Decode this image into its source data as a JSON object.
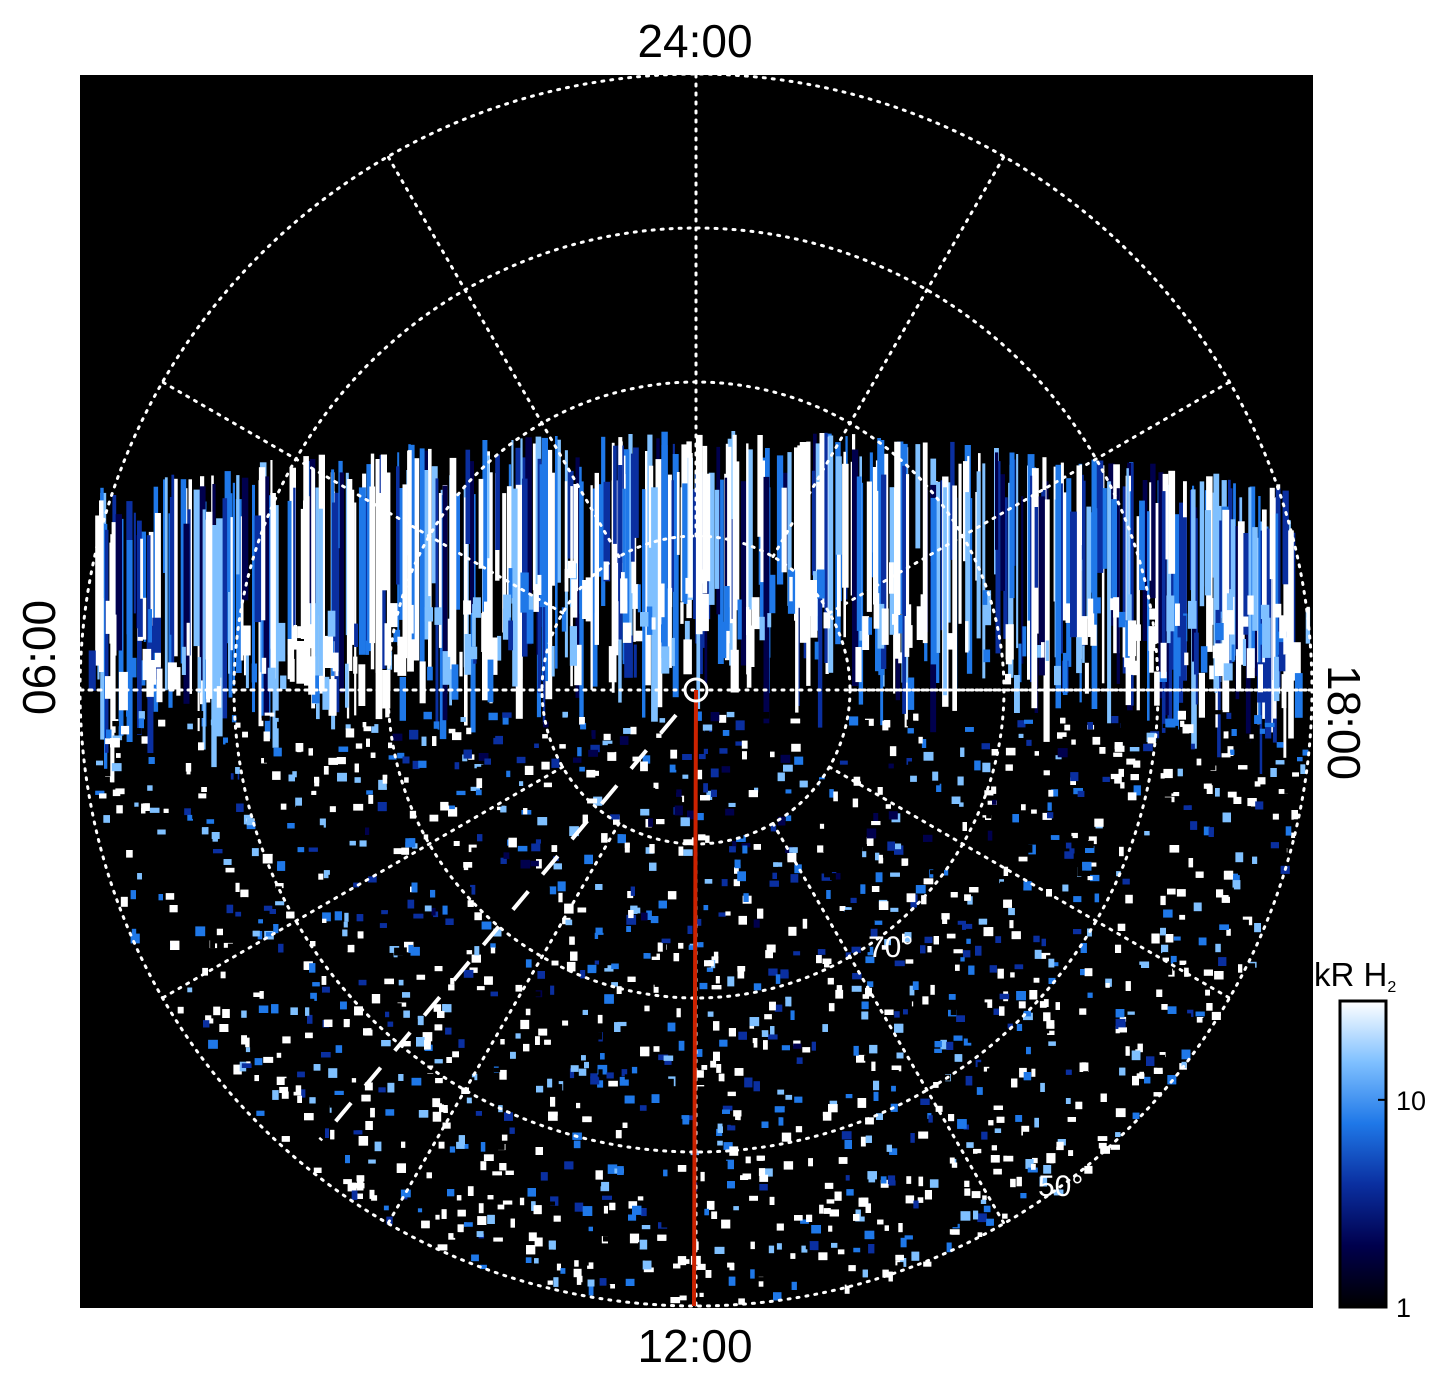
{
  "chart_data": {
    "type": "heatmap",
    "projection": "polar",
    "local_time_labels": {
      "top": "24:00",
      "bottom": "12:00",
      "left": "06:00",
      "right": "18:00"
    },
    "latitude_labels": [
      {
        "label": "70°",
        "latitude": 70
      },
      {
        "label": "50°",
        "latitude": 50
      }
    ],
    "latitude_circles": [
      80,
      70,
      60,
      50
    ],
    "local_time_meridians_hours": [
      0,
      2,
      4,
      6,
      8,
      10,
      12,
      14,
      16,
      18,
      20,
      22
    ],
    "grid": true,
    "colorbar": {
      "title": "kR H",
      "title_subscript": "2",
      "scale": "log",
      "range": [
        1,
        30
      ],
      "ticks": [
        {
          "label": "10",
          "value": 10
        },
        {
          "label": "1",
          "value": 1
        }
      ],
      "colors": [
        "#000000",
        "#00004d",
        "#0a2fa0",
        "#1f78e8",
        "#7fc0ff",
        "#ffffff"
      ]
    },
    "annotations": {
      "red_line": {
        "from_local_time": "12:00",
        "color": "#cc2200"
      },
      "dashed_line": {
        "color": "#ffffff"
      }
    },
    "background_color": "#000000",
    "grid_color": "#ffffff"
  }
}
